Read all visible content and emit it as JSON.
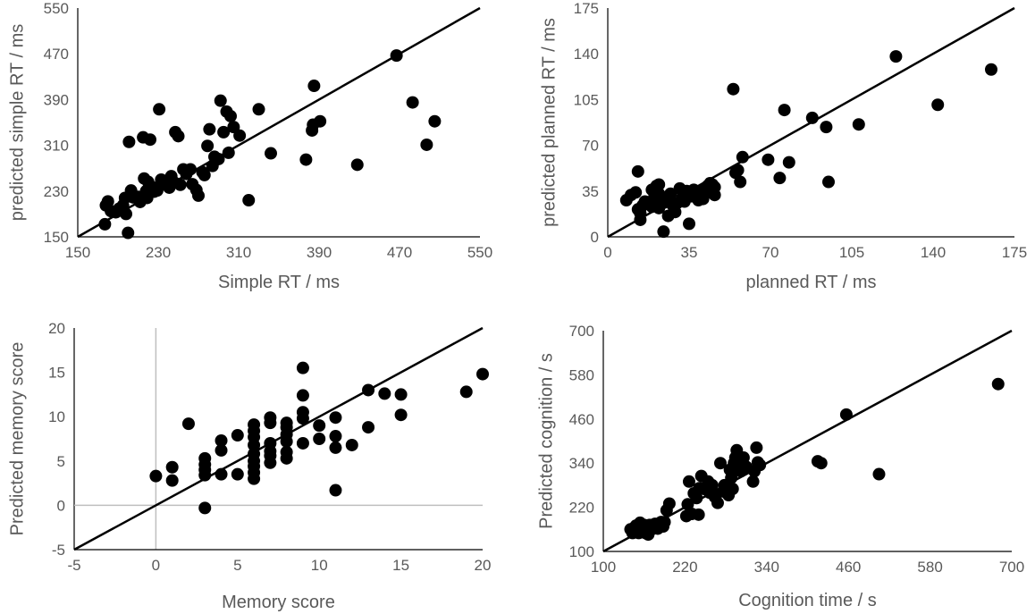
{
  "chart_data": [
    {
      "type": "scatter",
      "xlabel": "Simple RT / ms",
      "ylabel": "predicted simple RT / ms",
      "xlim": [
        150,
        550
      ],
      "ylim": [
        150,
        550
      ],
      "xticks": [
        "150",
        "230",
        "310",
        "390",
        "470",
        "550"
      ],
      "yticks": [
        "150",
        "230",
        "310",
        "390",
        "470",
        "550"
      ],
      "reference_line": "y = x",
      "points": [
        [
          177,
          172
        ],
        [
          178,
          205
        ],
        [
          180,
          212
        ],
        [
          183,
          195
        ],
        [
          188,
          193
        ],
        [
          191,
          199
        ],
        [
          195,
          205
        ],
        [
          197,
          218
        ],
        [
          198,
          190
        ],
        [
          200,
          157
        ],
        [
          201,
          316
        ],
        [
          203,
          231
        ],
        [
          205,
          219
        ],
        [
          210,
          220
        ],
        [
          212,
          211
        ],
        [
          215,
          324
        ],
        [
          216,
          252
        ],
        [
          218,
          230
        ],
        [
          219,
          218
        ],
        [
          220,
          246
        ],
        [
          222,
          320
        ],
        [
          224,
          237
        ],
        [
          226,
          229
        ],
        [
          229,
          231
        ],
        [
          231,
          373
        ],
        [
          233,
          250
        ],
        [
          236,
          245
        ],
        [
          239,
          240
        ],
        [
          241,
          236
        ],
        [
          243,
          256
        ],
        [
          246,
          245
        ],
        [
          247,
          333
        ],
        [
          250,
          326
        ],
        [
          252,
          241
        ],
        [
          255,
          268
        ],
        [
          258,
          260
        ],
        [
          262,
          268
        ],
        [
          264,
          242
        ],
        [
          268,
          232
        ],
        [
          270,
          222
        ],
        [
          274,
          263
        ],
        [
          276,
          258
        ],
        [
          279,
          309
        ],
        [
          281,
          338
        ],
        [
          284,
          274
        ],
        [
          286,
          290
        ],
        [
          290,
          286
        ],
        [
          292,
          388
        ],
        [
          295,
          333
        ],
        [
          298,
          369
        ],
        [
          300,
          297
        ],
        [
          302,
          361
        ],
        [
          305,
          342
        ],
        [
          311,
          327
        ],
        [
          320,
          214
        ],
        [
          330,
          373
        ],
        [
          342,
          296
        ],
        [
          377,
          285
        ],
        [
          383,
          336
        ],
        [
          384,
          346
        ],
        [
          385,
          414
        ],
        [
          391,
          352
        ],
        [
          428,
          276
        ],
        [
          467,
          467
        ],
        [
          483,
          385
        ],
        [
          497,
          311
        ],
        [
          505,
          352
        ]
      ]
    },
    {
      "type": "scatter",
      "xlabel": "planned RT / ms",
      "ylabel": "predicted planned RT / ms",
      "xlim": [
        0,
        175
      ],
      "ylim": [
        0,
        175
      ],
      "xticks": [
        "0",
        "35",
        "70",
        "105",
        "140",
        "175"
      ],
      "yticks": [
        "0",
        "35",
        "70",
        "105",
        "140",
        "175"
      ],
      "reference_line": "y = x",
      "points": [
        [
          8,
          28
        ],
        [
          10,
          32
        ],
        [
          12,
          34
        ],
        [
          13,
          21
        ],
        [
          13,
          50
        ],
        [
          14,
          18
        ],
        [
          14,
          13
        ],
        [
          15,
          24
        ],
        [
          16,
          27
        ],
        [
          18,
          25
        ],
        [
          19,
          23
        ],
        [
          19,
          36
        ],
        [
          20,
          30
        ],
        [
          21,
          39
        ],
        [
          22,
          33
        ],
        [
          22,
          40
        ],
        [
          22,
          22
        ],
        [
          23,
          29
        ],
        [
          24,
          26
        ],
        [
          24,
          4
        ],
        [
          25,
          30
        ],
        [
          26,
          16
        ],
        [
          27,
          33
        ],
        [
          28,
          24
        ],
        [
          29,
          19
        ],
        [
          30,
          26
        ],
        [
          31,
          37
        ],
        [
          32,
          30
        ],
        [
          33,
          27
        ],
        [
          34,
          35
        ],
        [
          35,
          10
        ],
        [
          36,
          31
        ],
        [
          37,
          36
        ],
        [
          38,
          35
        ],
        [
          39,
          28
        ],
        [
          40,
          33
        ],
        [
          41,
          29
        ],
        [
          42,
          37
        ],
        [
          43,
          39
        ],
        [
          44,
          41
        ],
        [
          45,
          34
        ],
        [
          45,
          40
        ],
        [
          46,
          32
        ],
        [
          46,
          38
        ],
        [
          54,
          113
        ],
        [
          55,
          49
        ],
        [
          56,
          51
        ],
        [
          57,
          42
        ],
        [
          58,
          61
        ],
        [
          69,
          59
        ],
        [
          74,
          45
        ],
        [
          76,
          97
        ],
        [
          78,
          57
        ],
        [
          88,
          91
        ],
        [
          94,
          84
        ],
        [
          95,
          42
        ],
        [
          108,
          86
        ],
        [
          124,
          138
        ],
        [
          142,
          101
        ],
        [
          165,
          128
        ]
      ]
    },
    {
      "type": "scatter",
      "xlabel": "Memory score",
      "ylabel": "Predicted memory score",
      "xlim": [
        -5,
        20
      ],
      "ylim": [
        -5,
        20
      ],
      "xticks": [
        "-5",
        "0",
        "5",
        "10",
        "15",
        "20"
      ],
      "yticks": [
        "-5",
        "0",
        "5",
        "10",
        "15",
        "20"
      ],
      "reference_line": "y = x",
      "points": [
        [
          0,
          3.3
        ],
        [
          1,
          2.8
        ],
        [
          1,
          4.3
        ],
        [
          2,
          9.2
        ],
        [
          3,
          -0.3
        ],
        [
          3,
          3.4
        ],
        [
          3,
          4.0
        ],
        [
          3,
          4.6
        ],
        [
          3,
          5.3
        ],
        [
          4,
          3.5
        ],
        [
          4,
          6.2
        ],
        [
          4,
          7.3
        ],
        [
          5,
          3.5
        ],
        [
          5,
          7.9
        ],
        [
          6,
          3.0
        ],
        [
          6,
          3.7
        ],
        [
          6,
          4.4
        ],
        [
          6,
          5.0
        ],
        [
          6,
          5.8
        ],
        [
          6,
          6.8
        ],
        [
          6,
          7.7
        ],
        [
          6,
          8.4
        ],
        [
          6,
          9.1
        ],
        [
          7,
          4.8
        ],
        [
          7,
          5.6
        ],
        [
          7,
          6.1
        ],
        [
          7,
          7.0
        ],
        [
          7,
          9.3
        ],
        [
          7,
          9.9
        ],
        [
          8,
          5.3
        ],
        [
          8,
          6.0
        ],
        [
          8,
          7.2
        ],
        [
          8,
          8.0
        ],
        [
          8,
          8.8
        ],
        [
          8,
          9.3
        ],
        [
          9,
          7.0
        ],
        [
          9,
          9.8
        ],
        [
          9,
          10.5
        ],
        [
          9,
          12.4
        ],
        [
          9,
          15.5
        ],
        [
          10,
          7.5
        ],
        [
          10,
          9.0
        ],
        [
          11,
          1.7
        ],
        [
          11,
          6.5
        ],
        [
          11,
          7.8
        ],
        [
          11,
          9.9
        ],
        [
          12,
          6.8
        ],
        [
          13,
          8.8
        ],
        [
          13,
          13.0
        ],
        [
          14,
          12.6
        ],
        [
          15,
          10.2
        ],
        [
          15,
          12.5
        ],
        [
          19,
          12.8
        ],
        [
          20,
          14.8
        ]
      ]
    },
    {
      "type": "scatter",
      "xlabel": "Cognition time / s",
      "ylabel": "Predicted cognition / s",
      "xlim": [
        100,
        700
      ],
      "ylim": [
        100,
        700
      ],
      "xticks": [
        "100",
        "220",
        "340",
        "460",
        "580",
        "700"
      ],
      "yticks": [
        "100",
        "220",
        "340",
        "460",
        "580",
        "700"
      ],
      "reference_line": "y = x",
      "points": [
        [
          140,
          160
        ],
        [
          143,
          150
        ],
        [
          146,
          165
        ],
        [
          148,
          170
        ],
        [
          150,
          158
        ],
        [
          152,
          150
        ],
        [
          154,
          178
        ],
        [
          156,
          168
        ],
        [
          158,
          160
        ],
        [
          160,
          172
        ],
        [
          162,
          150
        ],
        [
          164,
          165
        ],
        [
          166,
          146
        ],
        [
          168,
          172
        ],
        [
          171,
          160
        ],
        [
          174,
          168
        ],
        [
          176,
          175
        ],
        [
          180,
          162
        ],
        [
          182,
          172
        ],
        [
          185,
          180
        ],
        [
          188,
          168
        ],
        [
          190,
          180
        ],
        [
          193,
          212
        ],
        [
          197,
          230
        ],
        [
          222,
          196
        ],
        [
          224,
          228
        ],
        [
          226,
          290
        ],
        [
          230,
          202
        ],
        [
          233,
          258
        ],
        [
          237,
          245
        ],
        [
          240,
          200
        ],
        [
          241,
          272
        ],
        [
          244,
          305
        ],
        [
          248,
          270
        ],
        [
          254,
          290
        ],
        [
          256,
          260
        ],
        [
          260,
          280
        ],
        [
          264,
          248
        ],
        [
          268,
          232
        ],
        [
          272,
          340
        ],
        [
          276,
          263
        ],
        [
          278,
          280
        ],
        [
          282,
          268
        ],
        [
          284,
          253
        ],
        [
          286,
          322
        ],
        [
          288,
          300
        ],
        [
          290,
          270
        ],
        [
          292,
          340
        ],
        [
          294,
          355
        ],
        [
          296,
          375
        ],
        [
          298,
          330
        ],
        [
          302,
          318
        ],
        [
          304,
          345
        ],
        [
          306,
          355
        ],
        [
          310,
          330
        ],
        [
          320,
          290
        ],
        [
          322,
          318
        ],
        [
          325,
          382
        ],
        [
          327,
          342
        ],
        [
          330,
          335
        ],
        [
          415,
          345
        ],
        [
          420,
          340
        ],
        [
          457,
          472
        ],
        [
          505,
          310
        ],
        [
          680,
          555
        ]
      ]
    }
  ]
}
